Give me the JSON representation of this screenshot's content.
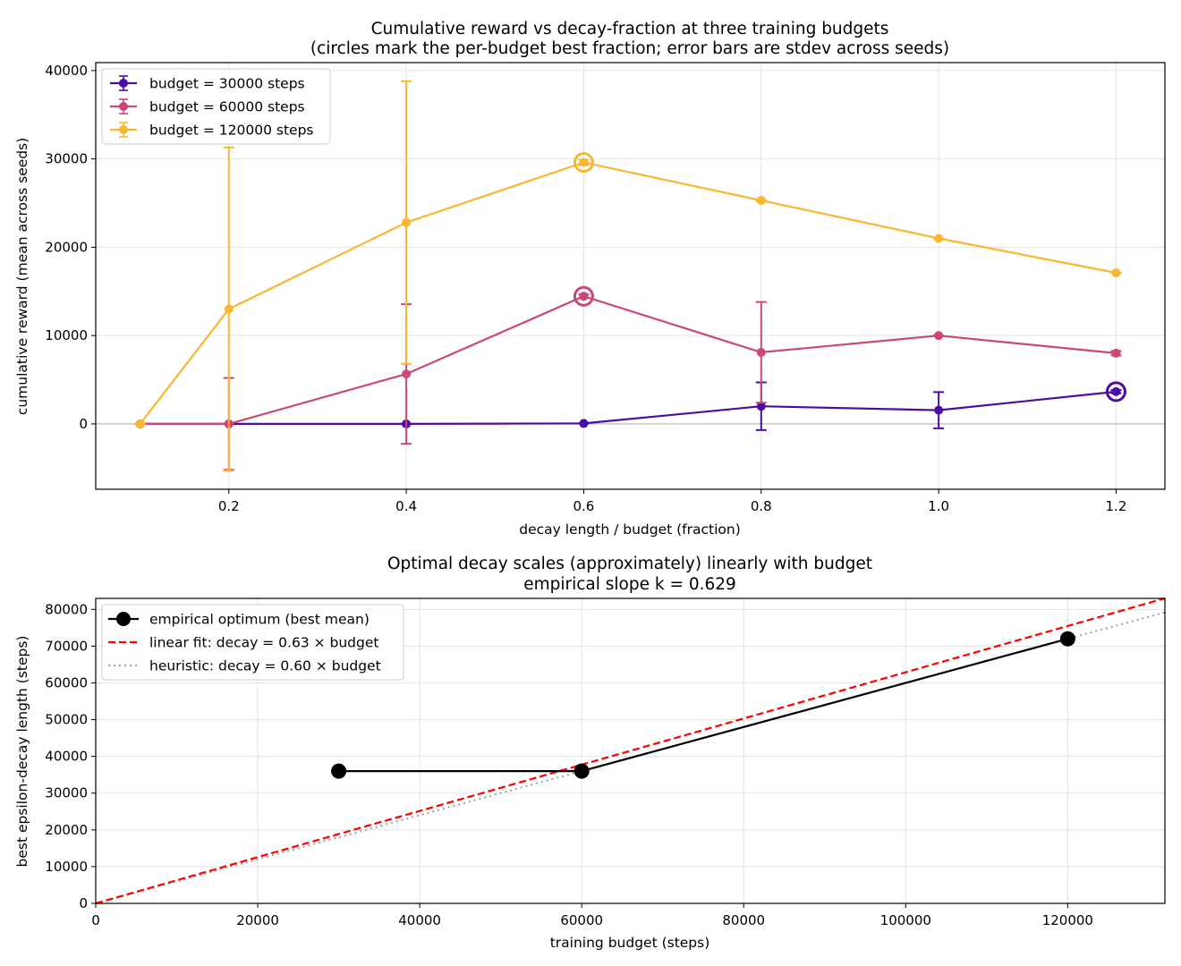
{
  "chart_data": [
    {
      "type": "line",
      "title": "Cumulative reward vs decay-fraction at three training budgets",
      "subtitle": "(circles mark the per-budget best fraction; error bars are stdev across seeds)",
      "xlabel": "decay length / budget  (fraction)",
      "ylabel": "cumulative reward (mean across seeds)",
      "xlim": [
        0.05,
        1.255
      ],
      "ylim": [
        -7400,
        40900
      ],
      "xticks": [
        0.2,
        0.4,
        0.6,
        0.8,
        1.0,
        1.2
      ],
      "xtick_labels": [
        "0.2",
        "0.4",
        "0.6",
        "0.8",
        "1.0",
        "1.2"
      ],
      "yticks": [
        0,
        10000,
        20000,
        30000,
        40000
      ],
      "ytick_labels": [
        "0",
        "10000",
        "20000",
        "30000",
        "40000"
      ],
      "grid": true,
      "legend_position": "upper-left",
      "x": [
        0.1,
        0.2,
        0.4,
        0.6,
        0.8,
        1.0,
        1.2
      ],
      "series": [
        {
          "name": "budget =  30000 steps",
          "color": "#4c0ca3",
          "values": [
            0,
            0,
            0,
            50,
            2000,
            1550,
            3650
          ],
          "errors": [
            0,
            0,
            0,
            0,
            2700,
            2050,
            180
          ],
          "best_index": 6
        },
        {
          "name": "budget =  60000 steps",
          "color": "#cb4679",
          "values": [
            0,
            0,
            5650,
            14450,
            8100,
            10000,
            8000
          ],
          "errors": [
            0,
            5200,
            7900,
            200,
            5700,
            0,
            250
          ],
          "best_index": 3
        },
        {
          "name": "budget = 120000 steps",
          "color": "#f8b730",
          "values": [
            0,
            13000,
            22800,
            29600,
            25300,
            21000,
            17100
          ],
          "errors": [
            0,
            18300,
            16000,
            300,
            0,
            0,
            0
          ],
          "best_index": 3
        }
      ]
    },
    {
      "type": "line",
      "title": "Optimal decay scales (approximately) linearly with budget",
      "subtitle": "empirical slope k = 0.629",
      "xlabel": "training budget (steps)",
      "ylabel": "best epsilon-decay length (steps)",
      "xlim": [
        0,
        132000
      ],
      "ylim": [
        0,
        83000
      ],
      "xticks": [
        0,
        20000,
        40000,
        60000,
        80000,
        100000,
        120000
      ],
      "xtick_labels": [
        "0",
        "20000",
        "40000",
        "60000",
        "80000",
        "100000",
        "120000"
      ],
      "yticks": [
        0,
        10000,
        20000,
        30000,
        40000,
        50000,
        60000,
        70000,
        80000
      ],
      "ytick_labels": [
        "0",
        "10000",
        "20000",
        "30000",
        "40000",
        "50000",
        "60000",
        "70000",
        "80000"
      ],
      "grid": true,
      "legend_position": "upper-left",
      "series": [
        {
          "name": "empirical optimum (best mean)",
          "color": "#000000",
          "style": "solid-markers",
          "x": [
            30000,
            60000,
            120000
          ],
          "values": [
            36000,
            36000,
            72000
          ]
        },
        {
          "name": "linear fit: decay = 0.63 × budget",
          "color": "#ff0000",
          "style": "dashed",
          "slope": 0.629
        },
        {
          "name": "heuristic: decay = 0.60 × budget",
          "color": "#a0a0a0",
          "style": "dotted",
          "slope": 0.6
        }
      ]
    }
  ]
}
